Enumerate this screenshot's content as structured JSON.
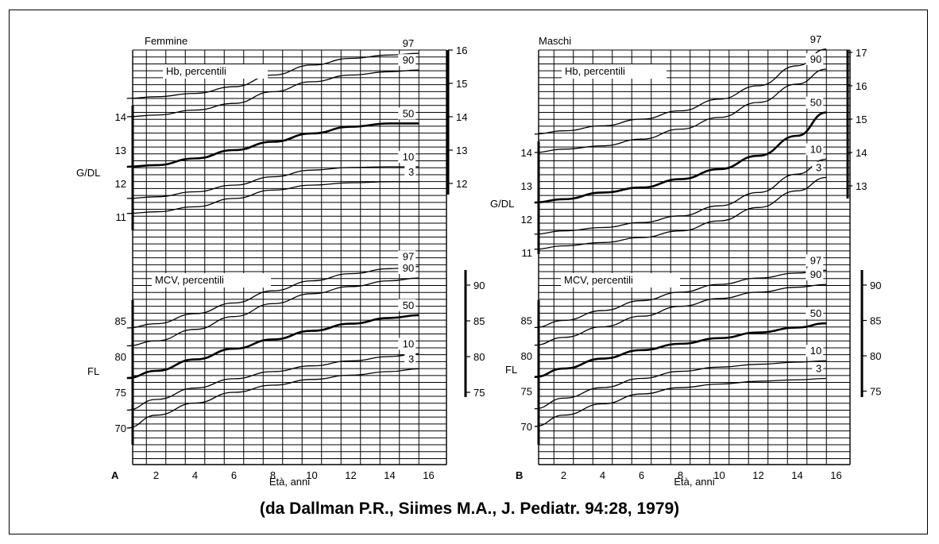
{
  "citation": "(da Dallman P.R., Siimes M.A., J. Pediatr.  94:28, 1979)",
  "chart_data": [
    {
      "type": "line",
      "panel_letter": "A",
      "panel_title": "Femmine",
      "xlabel": "Età, anni",
      "x_ticks": [
        2,
        4,
        6,
        8,
        10,
        12,
        14,
        16
      ],
      "hb": {
        "title": "Hb, percentili",
        "ylabel": "G/DL",
        "left_ticks": [
          11,
          12,
          13,
          14
        ],
        "right_ticks": [
          12,
          13,
          14,
          15,
          16
        ],
        "ylim": [
          10.2,
          16
        ],
        "series": [
          {
            "name": "97",
            "x": [
              0.5,
              2,
              4,
              6,
              8,
              10,
              12,
              14,
              15.5
            ],
            "values": [
              14.55,
              14.6,
              14.7,
              14.9,
              15.25,
              15.55,
              15.75,
              15.85,
              15.9
            ]
          },
          {
            "name": "90",
            "x": [
              0.5,
              2,
              4,
              6,
              8,
              10,
              12,
              14,
              15.5
            ],
            "values": [
              14.0,
              14.05,
              14.2,
              14.4,
              14.75,
              15.05,
              15.25,
              15.35,
              15.4
            ]
          },
          {
            "name": "50",
            "x": [
              0.5,
              2,
              4,
              6,
              8,
              10,
              12,
              14,
              15.5
            ],
            "values": [
              12.5,
              12.55,
              12.75,
              13.0,
              13.25,
              13.5,
              13.7,
              13.8,
              13.8
            ]
          },
          {
            "name": "10",
            "x": [
              0.5,
              2,
              4,
              6,
              8,
              10,
              12,
              14,
              15.5
            ],
            "values": [
              11.55,
              11.6,
              11.75,
              11.95,
              12.2,
              12.4,
              12.48,
              12.5,
              12.5
            ]
          },
          {
            "name": "3",
            "x": [
              0.5,
              2,
              4,
              6,
              8,
              10,
              12,
              14,
              15.5
            ],
            "values": [
              11.1,
              11.15,
              11.3,
              11.55,
              11.8,
              11.95,
              12.02,
              12.05,
              12.05
            ]
          }
        ]
      },
      "mcv": {
        "title": "MCV, percentili",
        "ylabel": "FL",
        "left_ticks": [
          70,
          75,
          80,
          85
        ],
        "right_ticks": [
          75,
          80,
          85,
          90
        ],
        "ylim": [
          67,
          94
        ],
        "series": [
          {
            "name": "97",
            "x": [
              0.5,
              2,
              4,
              6,
              8,
              10,
              12,
              14,
              15.5
            ],
            "values": [
              84.0,
              84.6,
              86.0,
              87.5,
              89.2,
              90.6,
              91.6,
              92.3,
              92.6
            ]
          },
          {
            "name": "90",
            "x": [
              0.5,
              2,
              4,
              6,
              8,
              10,
              12,
              14,
              15.5
            ],
            "values": [
              81.5,
              82.2,
              83.8,
              85.6,
              87.4,
              88.8,
              89.8,
              90.6,
              91.0
            ]
          },
          {
            "name": "50",
            "x": [
              0.5,
              2,
              4,
              6,
              8,
              10,
              12,
              14,
              15.5
            ],
            "values": [
              77.0,
              78.0,
              79.6,
              81.1,
              82.4,
              83.6,
              84.6,
              85.4,
              85.8
            ]
          },
          {
            "name": "10",
            "x": [
              0.5,
              2,
              4,
              6,
              8,
              10,
              12,
              14,
              15.5
            ],
            "values": [
              72.5,
              74.0,
              75.6,
              76.9,
              77.9,
              78.7,
              79.4,
              80.0,
              80.4
            ]
          },
          {
            "name": "3",
            "x": [
              0.5,
              2,
              4,
              6,
              8,
              10,
              12,
              14,
              15.5
            ],
            "values": [
              70.0,
              71.8,
              73.5,
              75.0,
              76.0,
              76.8,
              77.4,
              77.9,
              78.3
            ]
          }
        ]
      }
    },
    {
      "type": "line",
      "panel_letter": "B",
      "panel_title": "Maschi",
      "xlabel": "Età, anni",
      "x_ticks": [
        2,
        4,
        6,
        8,
        10,
        12,
        14,
        16
      ],
      "hb": {
        "title": "Hb, percentili",
        "ylabel": "G/DL",
        "left_ticks": [
          11,
          12,
          13,
          14
        ],
        "right_ticks": [
          13,
          14,
          15,
          16,
          17
        ],
        "ylim": [
          10.2,
          17
        ],
        "series": [
          {
            "name": "97",
            "x": [
              0.5,
              2,
              4,
              6,
              8,
              10,
              12,
              14,
              15.5
            ],
            "values": [
              14.55,
              14.65,
              14.8,
              15.0,
              15.25,
              15.6,
              16.0,
              16.6,
              17.1
            ]
          },
          {
            "name": "90",
            "x": [
              0.5,
              2,
              4,
              6,
              8,
              10,
              12,
              14,
              15.5
            ],
            "values": [
              14.0,
              14.1,
              14.2,
              14.4,
              14.7,
              15.05,
              15.5,
              16.05,
              16.5
            ]
          },
          {
            "name": "50",
            "x": [
              0.5,
              2,
              4,
              6,
              8,
              10,
              12,
              14,
              15.5
            ],
            "values": [
              12.5,
              12.6,
              12.8,
              12.95,
              13.2,
              13.5,
              13.9,
              14.5,
              15.2
            ]
          },
          {
            "name": "10",
            "x": [
              0.5,
              2,
              4,
              6,
              8,
              10,
              12,
              14,
              15.5
            ],
            "values": [
              11.55,
              11.65,
              11.75,
              11.9,
              12.1,
              12.4,
              12.8,
              13.35,
              13.8
            ]
          },
          {
            "name": "3",
            "x": [
              0.5,
              2,
              4,
              6,
              8,
              10,
              12,
              14,
              15.5
            ],
            "values": [
              11.1,
              11.2,
              11.3,
              11.45,
              11.65,
              11.95,
              12.35,
              12.85,
              13.25
            ]
          }
        ]
      },
      "mcv": {
        "title": "MCV, percentili",
        "ylabel": "FL",
        "left_ticks": [
          70,
          75,
          80,
          85
        ],
        "right_ticks": [
          75,
          80,
          85,
          90
        ],
        "ylim": [
          67,
          94
        ],
        "series": [
          {
            "name": "97",
            "x": [
              0.5,
              2,
              4,
              6,
              8,
              10,
              12,
              14,
              15.5
            ],
            "values": [
              84.0,
              85.0,
              86.4,
              87.8,
              89.0,
              90.1,
              91.0,
              91.7,
              92.1
            ]
          },
          {
            "name": "90",
            "x": [
              0.5,
              2,
              4,
              6,
              8,
              10,
              12,
              14,
              15.5
            ],
            "values": [
              81.5,
              82.6,
              84.1,
              85.6,
              87.0,
              88.1,
              89.0,
              89.7,
              90.1
            ]
          },
          {
            "name": "50",
            "x": [
              0.5,
              2,
              4,
              6,
              8,
              10,
              12,
              14,
              15.5
            ],
            "values": [
              77.0,
              78.2,
              79.6,
              80.8,
              81.7,
              82.5,
              83.3,
              84.0,
              84.6
            ]
          },
          {
            "name": "10",
            "x": [
              0.5,
              2,
              4,
              6,
              8,
              10,
              12,
              14,
              15.5
            ],
            "values": [
              72.5,
              74.0,
              75.5,
              76.8,
              77.8,
              78.4,
              78.8,
              79.1,
              79.3
            ]
          },
          {
            "name": "3",
            "x": [
              0.5,
              2,
              4,
              6,
              8,
              10,
              12,
              14,
              15.5
            ],
            "values": [
              70.0,
              71.6,
              73.2,
              74.6,
              75.5,
              76.0,
              76.4,
              76.6,
              76.8
            ]
          }
        ]
      }
    }
  ]
}
